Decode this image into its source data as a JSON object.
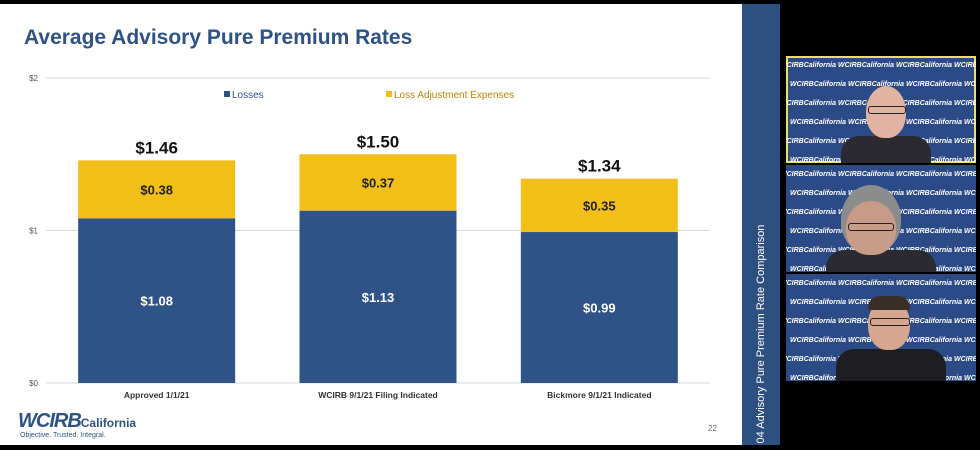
{
  "slide": {
    "title": "Average Advisory Pure Premium Rates",
    "sidebar_text": "04 Advisory Pure Premium Rate Comparison",
    "page_number": "22",
    "logo": {
      "main": "WCIRB",
      "sub": "California",
      "tagline": "Objective. Trusted. Integral."
    }
  },
  "colors": {
    "losses": "#2f5386",
    "lae": "#f2be1a",
    "title": "#2e5283",
    "sidebar": "#2d5080"
  },
  "chart_data": {
    "type": "bar",
    "stacked": true,
    "categories": [
      "Approved 1/1/21",
      "WCIRB 9/1/21 Filing Indicated",
      "Bickmore 9/1/21 Indicated"
    ],
    "series": [
      {
        "name": "Losses",
        "values": [
          1.08,
          1.13,
          0.99
        ],
        "labels": [
          "$1.08",
          "$1.13",
          "$0.99"
        ]
      },
      {
        "name": "Loss Adjustment Expenses",
        "values": [
          0.38,
          0.37,
          0.35
        ],
        "labels": [
          "$0.38",
          "$0.37",
          "$0.35"
        ]
      }
    ],
    "totals": [
      "$1.46",
      "$1.50",
      "$1.34"
    ],
    "ylim": [
      0,
      2
    ],
    "yticks": [
      0,
      1,
      2
    ],
    "ytick_labels": [
      "$0",
      "$1",
      "$2"
    ],
    "grid": true,
    "legend": "top-center"
  },
  "video_tiles": [
    {
      "label": "WCIRBCalifornia"
    },
    {
      "label": "WCIRBCalifornia"
    },
    {
      "label": "WCIRBCalifornia"
    }
  ]
}
